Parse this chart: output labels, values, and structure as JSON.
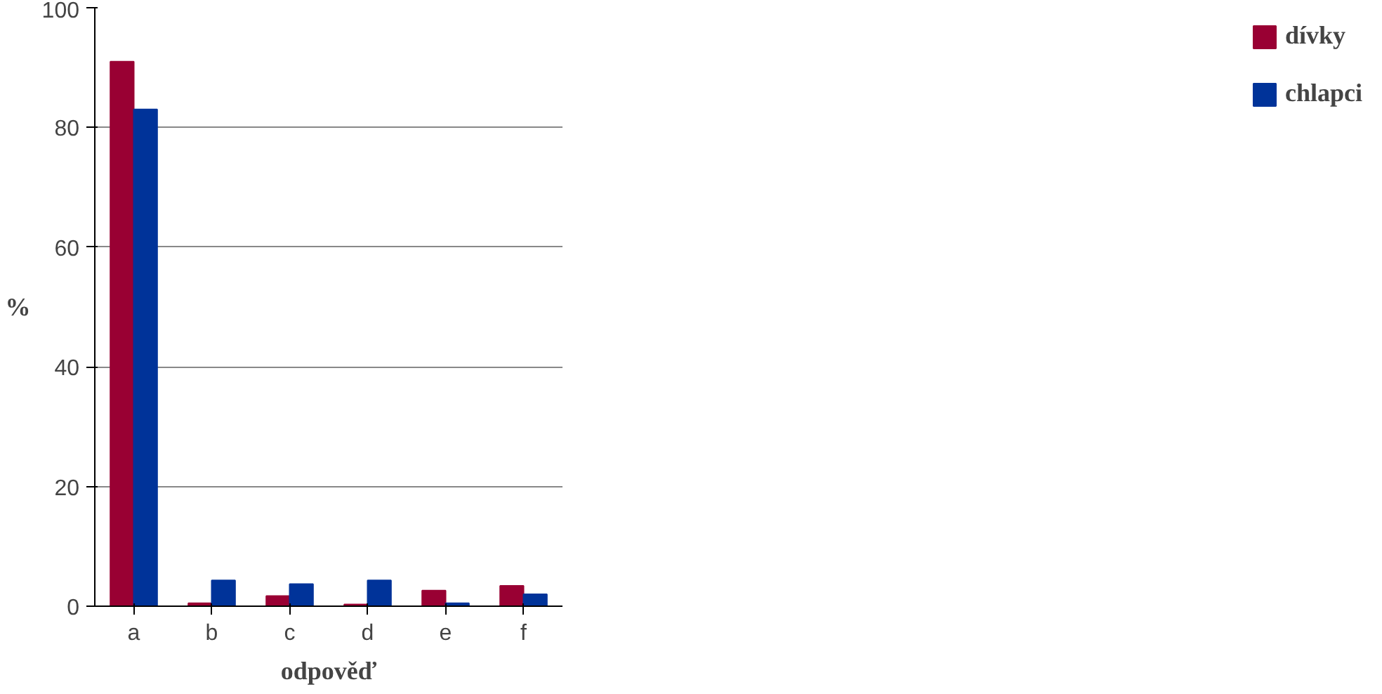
{
  "chart_data": {
    "type": "bar",
    "xlabel": "odpověď",
    "ylabel": "%",
    "categories": [
      "a",
      "b",
      "c",
      "d",
      "e",
      "f"
    ],
    "series": [
      {
        "name": "dívky",
        "color": "#990033",
        "values": [
          91,
          0.5,
          1.7,
          0.3,
          2.6,
          3.4
        ]
      },
      {
        "name": "chlapci",
        "color": "#003399",
        "values": [
          83,
          4.3,
          3.7,
          4.3,
          0.5,
          2
        ]
      }
    ],
    "ylim": [
      0,
      100
    ],
    "yticks": [
      0,
      20,
      40,
      60,
      80,
      100
    ],
    "grid": "y",
    "legend": "right"
  }
}
